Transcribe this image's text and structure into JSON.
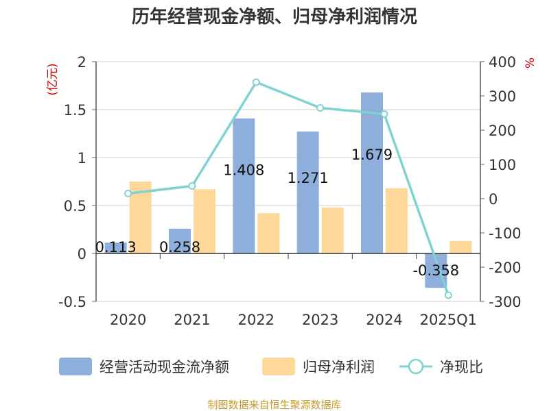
{
  "chart_data": {
    "type": "bar",
    "title": "历年经营现金净额、归母净利润情况",
    "categories": [
      "2020",
      "2021",
      "2022",
      "2023",
      "2024",
      "2025Q1"
    ],
    "left_axis": {
      "unit": "(亿元)",
      "ylim": [
        -0.5,
        2
      ],
      "ticks": [
        "2",
        "1.5",
        "1",
        "0.5",
        "0",
        "-0.5"
      ]
    },
    "right_axis": {
      "unit": "%",
      "ylim": [
        -300,
        400
      ],
      "ticks": [
        "400",
        "300",
        "200",
        "100",
        "0",
        "-100",
        "-200",
        "-300"
      ]
    },
    "series": [
      {
        "name": "经营活动现金流净额",
        "kind": "bar",
        "axis": "left",
        "color": "#8eaedb",
        "values": [
          0.113,
          0.258,
          1.408,
          1.271,
          1.679,
          -0.358
        ],
        "labels": [
          "0.113",
          "0.258",
          "1.408",
          "1.271",
          "1.679",
          "-0.358"
        ]
      },
      {
        "name": "归母净利润",
        "kind": "bar",
        "axis": "left",
        "color": "#fdd898",
        "values": [
          0.75,
          0.67,
          0.42,
          0.48,
          0.68,
          0.13
        ]
      },
      {
        "name": "净现比",
        "kind": "line",
        "axis": "right",
        "color": "#80d1d1",
        "values": [
          15,
          37,
          340,
          265,
          247,
          -282
        ]
      }
    ],
    "grid": true,
    "legend_position": "bottom"
  },
  "source_note": "制图数据来自恒生聚源数据库"
}
